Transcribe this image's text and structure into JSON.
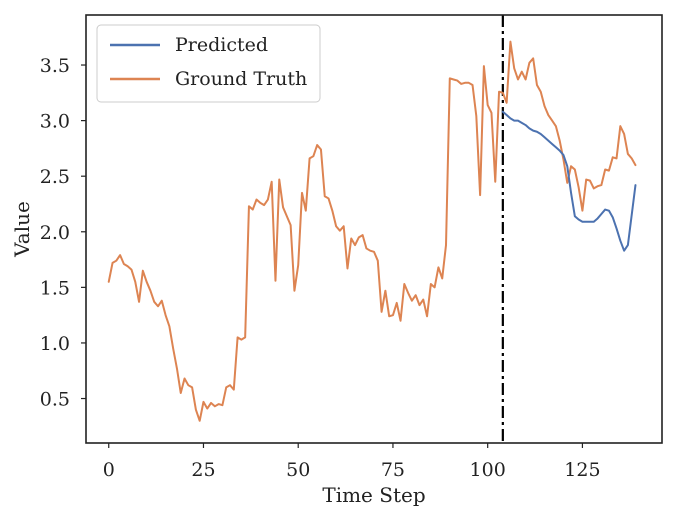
{
  "chart_data": {
    "type": "line",
    "title": "",
    "xlabel": "Time Step",
    "ylabel": "Value",
    "xlim": [
      -6,
      146
    ],
    "ylim": [
      0.1,
      3.95
    ],
    "xticks": [
      0,
      25,
      50,
      75,
      100,
      125
    ],
    "xtick_labels": [
      "0",
      "25",
      "50",
      "75",
      "100",
      "125"
    ],
    "yticks": [
      0.5,
      1.0,
      1.5,
      2.0,
      2.5,
      3.0,
      3.5
    ],
    "ytick_labels": [
      "0.5",
      "1.0",
      "1.5",
      "2.0",
      "2.5",
      "3.0",
      "3.5"
    ],
    "grid": false,
    "legend_position": "top-left",
    "vline": {
      "x": 104,
      "style": "dash-dot",
      "color": "#000000"
    },
    "series": [
      {
        "name": "Predicted",
        "color": "#4c72b0",
        "x": [
          104,
          105,
          106,
          107,
          108,
          109,
          110,
          111,
          112,
          113,
          114,
          115,
          116,
          117,
          118,
          119,
          120,
          121,
          122,
          123,
          124,
          125,
          126,
          127,
          128,
          129,
          130,
          131,
          132,
          133,
          134,
          135,
          136,
          137,
          138,
          139
        ],
        "y": [
          3.08,
          3.05,
          3.02,
          3.0,
          3.0,
          2.98,
          2.96,
          2.93,
          2.91,
          2.9,
          2.88,
          2.85,
          2.82,
          2.79,
          2.76,
          2.73,
          2.69,
          2.59,
          2.35,
          2.14,
          2.11,
          2.09,
          2.09,
          2.09,
          2.09,
          2.12,
          2.16,
          2.2,
          2.19,
          2.13,
          2.03,
          1.92,
          1.83,
          1.88,
          2.15,
          2.42
        ]
      },
      {
        "name": "Ground Truth",
        "color": "#dd8452",
        "x": [
          0,
          1,
          2,
          3,
          4,
          5,
          6,
          7,
          8,
          9,
          10,
          11,
          12,
          13,
          14,
          15,
          16,
          17,
          18,
          19,
          20,
          21,
          22,
          23,
          24,
          25,
          26,
          27,
          28,
          29,
          30,
          31,
          32,
          33,
          34,
          35,
          36,
          37,
          38,
          39,
          40,
          41,
          42,
          43,
          44,
          45,
          46,
          47,
          48,
          49,
          50,
          51,
          52,
          53,
          54,
          55,
          56,
          57,
          58,
          59,
          60,
          61,
          62,
          63,
          64,
          65,
          66,
          67,
          68,
          69,
          70,
          71,
          72,
          73,
          74,
          75,
          76,
          77,
          78,
          79,
          80,
          81,
          82,
          83,
          84,
          85,
          86,
          87,
          88,
          89,
          90,
          91,
          92,
          93,
          94,
          95,
          96,
          97,
          98,
          99,
          100,
          101,
          102,
          103,
          104,
          105,
          106,
          107,
          108,
          109,
          110,
          111,
          112,
          113,
          114,
          115,
          116,
          117,
          118,
          119,
          120,
          121,
          122,
          123,
          124,
          125,
          126,
          127,
          128,
          129,
          130,
          131,
          132,
          133,
          134,
          135,
          136,
          137,
          138,
          139
        ],
        "y": [
          1.55,
          1.72,
          1.74,
          1.79,
          1.71,
          1.69,
          1.66,
          1.55,
          1.37,
          1.65,
          1.55,
          1.47,
          1.37,
          1.33,
          1.38,
          1.25,
          1.15,
          0.95,
          0.77,
          0.55,
          0.68,
          0.62,
          0.6,
          0.4,
          0.3,
          0.47,
          0.41,
          0.46,
          0.43,
          0.45,
          0.44,
          0.6,
          0.62,
          0.58,
          1.05,
          1.03,
          1.05,
          2.23,
          2.2,
          2.29,
          2.26,
          2.24,
          2.29,
          2.45,
          1.56,
          2.47,
          2.22,
          2.14,
          2.06,
          1.47,
          1.7,
          2.35,
          2.19,
          2.66,
          2.68,
          2.78,
          2.74,
          2.32,
          2.3,
          2.19,
          2.05,
          2.01,
          2.05,
          1.67,
          1.94,
          1.88,
          1.95,
          1.97,
          1.85,
          1.83,
          1.82,
          1.74,
          1.28,
          1.47,
          1.24,
          1.25,
          1.36,
          1.2,
          1.53,
          1.45,
          1.38,
          1.43,
          1.34,
          1.39,
          1.24,
          1.53,
          1.5,
          1.68,
          1.58,
          1.88,
          3.38,
          3.37,
          3.36,
          3.33,
          3.34,
          3.34,
          3.32,
          3.04,
          2.33,
          3.49,
          3.14,
          3.07,
          2.45,
          3.26,
          3.25,
          3.16,
          3.71,
          3.47,
          3.37,
          3.44,
          3.37,
          3.52,
          3.56,
          3.32,
          3.26,
          3.13,
          3.05,
          3.0,
          2.95,
          2.82,
          2.65,
          2.44,
          2.59,
          2.56,
          2.4,
          2.19,
          2.47,
          2.46,
          2.39,
          2.41,
          2.42,
          2.56,
          2.55,
          2.67,
          2.66,
          2.95,
          2.88,
          2.7,
          2.66,
          2.6
        ]
      }
    ]
  }
}
